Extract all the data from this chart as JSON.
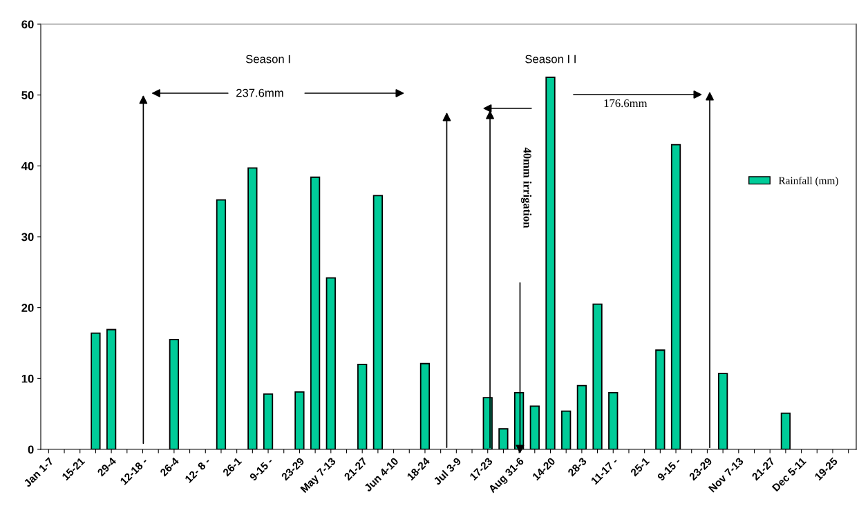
{
  "chart_data": {
    "type": "bar",
    "categories": [
      "Jan 1-7",
      null,
      "15-21",
      null,
      "29-4",
      null,
      "12-18 -",
      null,
      "26-4",
      null,
      "12- 8 -",
      null,
      "26-1",
      null,
      "9-15 -",
      null,
      "23-29",
      null,
      "May 7-13",
      null,
      "21-27",
      null,
      "Jun 4-10",
      null,
      "18-24",
      null,
      "Jul 3-9",
      null,
      "17-23",
      null,
      "Aug 31-6",
      null,
      "14-20",
      null,
      "28-3",
      null,
      "11-17 -",
      null,
      "25-1",
      null,
      "9-15 -",
      null,
      "23-29",
      null,
      "Nov 7-13",
      null,
      "21-27",
      null,
      "Dec 5-11",
      null,
      "19-25",
      null
    ],
    "series": [
      {
        "name": "Rainfall (mm)",
        "color": "#00cc99",
        "values": [
          null,
          null,
          null,
          16.4,
          16.9,
          null,
          null,
          null,
          15.5,
          null,
          null,
          35.2,
          null,
          39.7,
          7.8,
          null,
          8.1,
          38.4,
          24.2,
          null,
          12.0,
          35.8,
          null,
          null,
          12.1,
          null,
          null,
          null,
          7.3,
          2.9,
          8.0,
          6.1,
          52.5,
          5.4,
          9.0,
          20.5,
          8.0,
          null,
          null,
          14.0,
          43.0,
          null,
          null,
          10.7,
          null,
          null,
          null,
          5.1,
          null,
          null,
          null,
          null
        ]
      }
    ],
    "ylim": [
      0,
      60
    ],
    "yticks": [
      0,
      10,
      20,
      30,
      40,
      50,
      60
    ],
    "grid": false,
    "legend": "right",
    "annotations": [
      "Season I",
      "237.6mm",
      "Season I I",
      "176.6mm",
      "40mm irrigation"
    ]
  }
}
